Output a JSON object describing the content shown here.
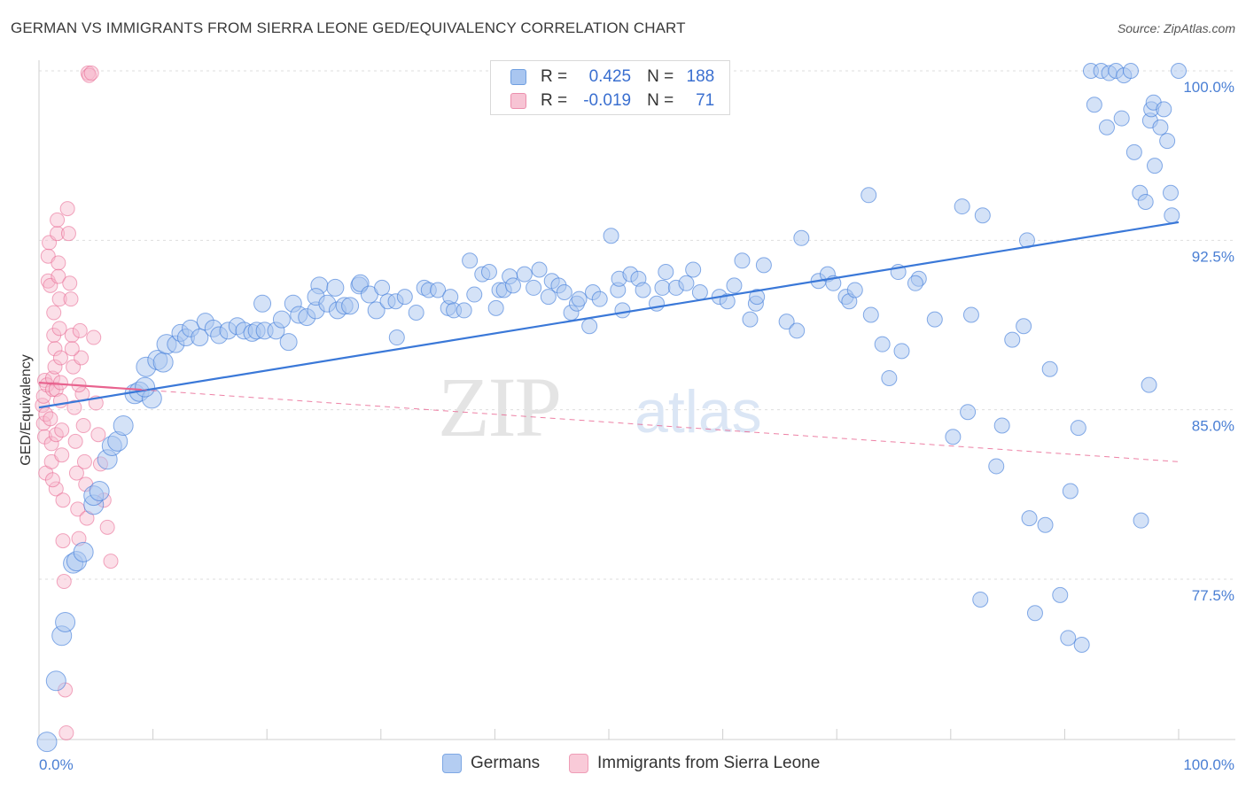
{
  "title": "GERMAN VS IMMIGRANTS FROM SIERRA LEONE GED/EQUIVALENCY CORRELATION CHART",
  "source": "Source: ZipAtlas.com",
  "watermark": {
    "zip": "ZIP",
    "atlas": "atlas"
  },
  "colors": {
    "blue": "#3a78d8",
    "blue_fill": "#a9c6f0",
    "pink": "#e8628e",
    "pink_fill": "#f7b9cc",
    "grid": "#dedede",
    "axis_text": "#4a7fd4"
  },
  "legend": {
    "rows": [
      {
        "r_label": "R =",
        "r_value": "0.425",
        "n_label": "N =",
        "n_value": "188",
        "series": "blue"
      },
      {
        "r_label": "R =",
        "r_value": "-0.019",
        "n_label": "N =",
        "n_value": "71",
        "series": "pink"
      }
    ]
  },
  "bottom_legend": {
    "germans": "Germans",
    "sierra_leone": "Immigrants from Sierra Leone"
  },
  "chart_data": {
    "type": "scatter",
    "xlabel": "",
    "ylabel": "GED/Equivalency",
    "xlim": [
      0,
      100
    ],
    "ylim": [
      70.0,
      100.0
    ],
    "x_tick_labels": [
      "0.0%",
      "100.0%"
    ],
    "y_ticks": [
      77.5,
      85.0,
      92.5,
      100.0
    ],
    "y_tick_labels": [
      "77.5%",
      "85.0%",
      "92.5%",
      "100.0%"
    ],
    "grid": true,
    "legend_position": "top-center",
    "series": [
      {
        "name": "Germans",
        "r": 0.425,
        "n": 188,
        "trend": {
          "x": [
            0,
            100
          ],
          "y": [
            85.1,
            93.3
          ]
        },
        "points": [
          [
            0.7,
            70.3
          ],
          [
            1.5,
            73.0
          ],
          [
            2.0,
            75.0
          ],
          [
            2.3,
            75.6
          ],
          [
            3.0,
            78.2
          ],
          [
            3.3,
            78.3
          ],
          [
            3.9,
            78.7
          ],
          [
            4.8,
            80.8
          ],
          [
            4.8,
            81.2
          ],
          [
            5.3,
            81.4
          ],
          [
            6.0,
            82.8
          ],
          [
            6.4,
            83.4
          ],
          [
            6.9,
            83.6
          ],
          [
            7.4,
            84.3
          ],
          [
            8.4,
            85.7
          ],
          [
            8.8,
            85.8
          ],
          [
            9.9,
            85.5
          ],
          [
            9.3,
            86.0
          ],
          [
            9.4,
            86.9
          ],
          [
            10.4,
            87.2
          ],
          [
            10.9,
            87.1
          ],
          [
            11.2,
            87.9
          ],
          [
            12.0,
            87.9
          ],
          [
            12.4,
            88.4
          ],
          [
            12.9,
            88.2
          ],
          [
            13.3,
            88.6
          ],
          [
            14.1,
            88.2
          ],
          [
            14.6,
            88.9
          ],
          [
            15.3,
            88.6
          ],
          [
            15.8,
            88.3
          ],
          [
            16.6,
            88.5
          ],
          [
            17.4,
            88.7
          ],
          [
            18.0,
            88.5
          ],
          [
            18.7,
            88.4
          ],
          [
            19.1,
            88.5
          ],
          [
            19.6,
            89.7
          ],
          [
            19.8,
            88.5
          ],
          [
            20.8,
            88.5
          ],
          [
            21.3,
            89.0
          ],
          [
            21.9,
            88.0
          ],
          [
            22.3,
            89.7
          ],
          [
            22.8,
            89.2
          ],
          [
            23.5,
            89.1
          ],
          [
            24.3,
            89.4
          ],
          [
            24.6,
            90.5
          ],
          [
            24.3,
            90.0
          ],
          [
            25.3,
            89.7
          ],
          [
            26.0,
            90.4
          ],
          [
            26.2,
            89.4
          ],
          [
            26.8,
            89.6
          ],
          [
            27.3,
            89.6
          ],
          [
            28.1,
            90.5
          ],
          [
            28.2,
            90.6
          ],
          [
            29.0,
            90.1
          ],
          [
            29.6,
            89.4
          ],
          [
            30.1,
            90.4
          ],
          [
            30.6,
            89.8
          ],
          [
            31.3,
            89.8
          ],
          [
            31.4,
            88.2
          ],
          [
            32.1,
            90.0
          ],
          [
            33.1,
            89.3
          ],
          [
            33.8,
            90.4
          ],
          [
            34.2,
            90.3
          ],
          [
            35.0,
            90.3
          ],
          [
            35.9,
            89.5
          ],
          [
            36.1,
            90.0
          ],
          [
            36.4,
            89.4
          ],
          [
            37.3,
            89.4
          ],
          [
            37.8,
            91.6
          ],
          [
            38.2,
            90.1
          ],
          [
            38.9,
            91.0
          ],
          [
            39.5,
            91.1
          ],
          [
            40.1,
            89.5
          ],
          [
            40.4,
            90.3
          ],
          [
            40.8,
            90.3
          ],
          [
            41.3,
            90.9
          ],
          [
            41.6,
            90.5
          ],
          [
            42.6,
            91.0
          ],
          [
            43.4,
            90.4
          ],
          [
            43.9,
            91.2
          ],
          [
            44.7,
            90.0
          ],
          [
            45.0,
            90.7
          ],
          [
            45.6,
            90.5
          ],
          [
            46.1,
            90.2
          ],
          [
            46.7,
            89.3
          ],
          [
            47.2,
            89.7
          ],
          [
            47.4,
            89.9
          ],
          [
            48.3,
            88.7
          ],
          [
            48.6,
            90.2
          ],
          [
            49.2,
            89.9
          ],
          [
            50.2,
            92.7
          ],
          [
            50.8,
            90.3
          ],
          [
            50.9,
            90.8
          ],
          [
            51.2,
            89.4
          ],
          [
            51.9,
            91.0
          ],
          [
            52.6,
            90.8
          ],
          [
            53.0,
            90.3
          ],
          [
            54.2,
            89.7
          ],
          [
            54.7,
            90.4
          ],
          [
            55.0,
            91.1
          ],
          [
            55.9,
            90.4
          ],
          [
            56.8,
            90.6
          ],
          [
            57.4,
            91.2
          ],
          [
            58.0,
            90.2
          ],
          [
            59.7,
            90.0
          ],
          [
            60.4,
            89.8
          ],
          [
            61.0,
            90.5
          ],
          [
            61.7,
            91.6
          ],
          [
            62.4,
            89.0
          ],
          [
            62.9,
            89.7
          ],
          [
            63.0,
            90.0
          ],
          [
            63.6,
            91.4
          ],
          [
            65.6,
            88.9
          ],
          [
            66.5,
            88.5
          ],
          [
            66.9,
            92.6
          ],
          [
            68.4,
            90.7
          ],
          [
            69.2,
            91.0
          ],
          [
            69.7,
            90.6
          ],
          [
            70.8,
            90.0
          ],
          [
            71.1,
            89.8
          ],
          [
            71.6,
            90.3
          ],
          [
            72.8,
            94.5
          ],
          [
            73.0,
            89.2
          ],
          [
            74.0,
            87.9
          ],
          [
            74.6,
            86.4
          ],
          [
            75.7,
            87.6
          ],
          [
            75.4,
            91.1
          ],
          [
            77.2,
            90.8
          ],
          [
            76.9,
            90.6
          ],
          [
            78.6,
            89.0
          ],
          [
            80.2,
            83.8
          ],
          [
            81.0,
            94.0
          ],
          [
            81.5,
            84.9
          ],
          [
            81.8,
            89.2
          ],
          [
            82.6,
            76.6
          ],
          [
            82.8,
            93.6
          ],
          [
            84.0,
            82.5
          ],
          [
            84.5,
            84.3
          ],
          [
            85.4,
            88.1
          ],
          [
            86.4,
            88.7
          ],
          [
            86.7,
            92.5
          ],
          [
            86.9,
            80.2
          ],
          [
            87.4,
            76.0
          ],
          [
            88.3,
            79.9
          ],
          [
            88.7,
            86.8
          ],
          [
            89.6,
            76.8
          ],
          [
            90.3,
            74.9
          ],
          [
            90.5,
            81.4
          ],
          [
            91.5,
            74.6
          ],
          [
            91.2,
            84.2
          ],
          [
            92.3,
            100.0
          ],
          [
            92.6,
            98.5
          ],
          [
            93.2,
            100.0
          ],
          [
            93.7,
            97.5
          ],
          [
            93.9,
            99.9
          ],
          [
            94.5,
            100.0
          ],
          [
            95.0,
            97.9
          ],
          [
            95.2,
            99.8
          ],
          [
            95.8,
            100.0
          ],
          [
            96.1,
            96.4
          ],
          [
            96.6,
            94.6
          ],
          [
            97.1,
            94.2
          ],
          [
            97.5,
            97.8
          ],
          [
            97.6,
            98.3
          ],
          [
            97.8,
            98.6
          ],
          [
            98.4,
            97.5
          ],
          [
            98.7,
            98.3
          ],
          [
            99.0,
            96.9
          ],
          [
            99.4,
            93.6
          ],
          [
            100.0,
            100.0
          ],
          [
            99.3,
            94.6
          ],
          [
            97.9,
            95.8
          ],
          [
            97.4,
            86.1
          ],
          [
            96.7,
            80.1
          ]
        ]
      },
      {
        "name": "Immigrants from Sierra Leone",
        "r": -0.019,
        "n": 71,
        "trend": {
          "x": [
            0,
            100
          ],
          "y": [
            86.2,
            82.7
          ]
        },
        "points": [
          [
            0.3,
            85.2
          ],
          [
            0.4,
            84.4
          ],
          [
            0.4,
            85.6
          ],
          [
            0.5,
            86.3
          ],
          [
            0.5,
            83.8
          ],
          [
            0.6,
            82.2
          ],
          [
            0.6,
            84.8
          ],
          [
            0.7,
            86.1
          ],
          [
            0.8,
            90.7
          ],
          [
            0.8,
            91.8
          ],
          [
            0.9,
            92.4
          ],
          [
            1.0,
            90.5
          ],
          [
            1.0,
            84.6
          ],
          [
            1.1,
            83.5
          ],
          [
            1.1,
            82.7
          ],
          [
            1.2,
            85.9
          ],
          [
            1.2,
            86.4
          ],
          [
            1.3,
            88.3
          ],
          [
            1.3,
            89.3
          ],
          [
            1.4,
            87.7
          ],
          [
            1.4,
            86.9
          ],
          [
            1.5,
            85.9
          ],
          [
            1.5,
            83.9
          ],
          [
            1.5,
            81.5
          ],
          [
            1.6,
            92.8
          ],
          [
            1.6,
            93.4
          ],
          [
            1.7,
            91.5
          ],
          [
            1.7,
            90.9
          ],
          [
            1.8,
            89.9
          ],
          [
            1.8,
            88.6
          ],
          [
            1.9,
            87.3
          ],
          [
            1.9,
            86.2
          ],
          [
            1.9,
            85.4
          ],
          [
            2.0,
            84.1
          ],
          [
            2.0,
            83.0
          ],
          [
            2.1,
            81.0
          ],
          [
            2.1,
            79.2
          ],
          [
            2.2,
            77.4
          ],
          [
            2.3,
            72.6
          ],
          [
            2.4,
            70.7
          ],
          [
            2.5,
            93.9
          ],
          [
            2.6,
            92.8
          ],
          [
            2.7,
            90.6
          ],
          [
            2.8,
            89.9
          ],
          [
            2.9,
            88.3
          ],
          [
            3.0,
            86.9
          ],
          [
            3.1,
            85.1
          ],
          [
            3.2,
            83.6
          ],
          [
            3.3,
            82.2
          ],
          [
            3.4,
            80.6
          ],
          [
            3.5,
            79.3
          ],
          [
            3.6,
            88.5
          ],
          [
            3.7,
            87.3
          ],
          [
            3.8,
            85.7
          ],
          [
            3.9,
            84.3
          ],
          [
            4.0,
            82.7
          ],
          [
            4.1,
            81.7
          ],
          [
            4.2,
            80.2
          ],
          [
            4.3,
            99.9
          ],
          [
            4.4,
            99.8
          ],
          [
            4.6,
            99.9
          ],
          [
            4.8,
            88.2
          ],
          [
            5.0,
            85.3
          ],
          [
            5.2,
            83.9
          ],
          [
            5.4,
            82.6
          ],
          [
            5.7,
            81.0
          ],
          [
            6.0,
            79.8
          ],
          [
            6.3,
            78.3
          ],
          [
            3.5,
            86.1
          ],
          [
            2.9,
            87.7
          ],
          [
            1.2,
            81.9
          ]
        ]
      }
    ]
  }
}
